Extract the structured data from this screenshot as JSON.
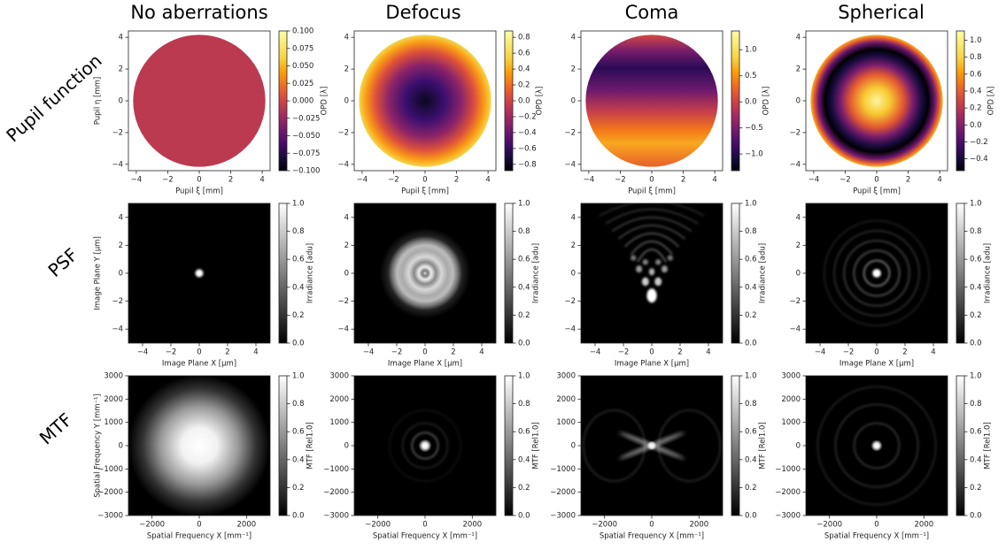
{
  "figure": {
    "column_titles": [
      "No aberrations",
      "Defocus",
      "Coma",
      "Spherical"
    ],
    "row_labels": [
      "Pupil function",
      "PSF",
      "MTF"
    ]
  },
  "chart_data": [
    {
      "type": "heatmap",
      "xlabel": "Pupil ξ [mm]",
      "ylabel": "Pupil η [mm]",
      "xlim": [
        -4.5,
        4.5
      ],
      "ylim": [
        -4.4,
        4.4
      ],
      "xticks": [
        {
          "value": -4,
          "label": "−4"
        },
        {
          "value": -2,
          "label": "−2"
        },
        0,
        2,
        4
      ],
      "yticks": [
        {
          "value": -4,
          "label": "−4"
        },
        {
          "value": -2,
          "label": "−2"
        },
        0,
        2,
        4
      ],
      "colormap": "inferno",
      "colorbar": {
        "label": "OPD [λ]",
        "lim": [
          -0.1,
          0.1
        ],
        "ticks": [
          {
            "value": -0.1,
            "label": "−0.100"
          },
          {
            "value": -0.075,
            "label": "−0.075"
          },
          {
            "value": -0.05,
            "label": "−0.050"
          },
          {
            "value": -0.025,
            "label": "−0.025"
          },
          {
            "value": 0,
            "label": "0.000"
          },
          0.025,
          {
            "value": 0.05,
            "label": "0.050"
          },
          0.075,
          {
            "value": 0.1,
            "label": "0.100"
          }
        ]
      }
    },
    {
      "type": "heatmap",
      "xlabel": "Pupil ξ [mm]",
      "xlim": [
        -4.5,
        4.5
      ],
      "ylim": [
        -4.4,
        4.4
      ],
      "xticks": [
        {
          "value": -4,
          "label": "−4"
        },
        {
          "value": -2,
          "label": "−2"
        },
        0,
        2,
        4
      ],
      "yticks": [
        {
          "value": -4,
          "label": "−4"
        },
        {
          "value": -2,
          "label": "−2"
        },
        0,
        2,
        4
      ],
      "colormap": "inferno",
      "colorbar": {
        "label": "OPD [λ]",
        "lim": [
          -0.88,
          0.88
        ],
        "ticks": [
          {
            "value": -0.8,
            "label": "−0.8"
          },
          {
            "value": -0.6,
            "label": "−0.6"
          },
          {
            "value": -0.4,
            "label": "−0.4"
          },
          {
            "value": -0.2,
            "label": "−0.2"
          },
          {
            "value": 0,
            "label": "0.0"
          },
          0.2,
          0.4,
          0.6,
          0.8
        ]
      }
    },
    {
      "type": "heatmap",
      "xlabel": "Pupil ξ [mm]",
      "xlim": [
        -4.5,
        4.5
      ],
      "ylim": [
        -4.4,
        4.4
      ],
      "xticks": [
        {
          "value": -4,
          "label": "−4"
        },
        {
          "value": -2,
          "label": "−2"
        },
        0,
        2,
        4
      ],
      "yticks": [
        {
          "value": -4,
          "label": "−4"
        },
        {
          "value": -2,
          "label": "−2"
        },
        0,
        2,
        4
      ],
      "colormap": "inferno",
      "colorbar": {
        "label": "OPD [λ]",
        "lim": [
          -1.32,
          1.36
        ],
        "ticks": [
          {
            "value": -1,
            "label": "−1.0"
          },
          {
            "value": -0.5,
            "label": "−0.5"
          },
          {
            "value": 0,
            "label": "0.0"
          },
          0.5,
          {
            "value": 1,
            "label": "1.0"
          }
        ]
      }
    },
    {
      "type": "heatmap",
      "xlabel": "Pupil ξ [mm]",
      "xlim": [
        -4.5,
        4.5
      ],
      "ylim": [
        -4.4,
        4.4
      ],
      "xticks": [
        {
          "value": -4,
          "label": "−4"
        },
        {
          "value": -2,
          "label": "−2"
        },
        0,
        2,
        4
      ],
      "yticks": [
        {
          "value": -4,
          "label": "−4"
        },
        {
          "value": -2,
          "label": "−2"
        },
        0,
        2,
        4
      ],
      "colormap": "inferno",
      "colorbar": {
        "label": "OPD [λ]",
        "lim": [
          -0.54,
          1.11
        ],
        "ticks": [
          {
            "value": -0.4,
            "label": "−0.4"
          },
          {
            "value": -0.2,
            "label": "−0.2"
          },
          {
            "value": 0,
            "label": "0.0"
          },
          0.2,
          0.4,
          0.6,
          0.8,
          {
            "value": 1,
            "label": "1.0"
          }
        ]
      }
    },
    {
      "type": "heatmap",
      "xlabel": "Image Plane X [µm]",
      "ylabel": "Image Plane Y [µm]",
      "xlim": [
        -5,
        5
      ],
      "ylim": [
        -5,
        5
      ],
      "xticks": [
        {
          "value": -4,
          "label": "−4"
        },
        {
          "value": -2,
          "label": "−2"
        },
        0,
        2,
        4
      ],
      "yticks": [
        {
          "value": -4,
          "label": "−4"
        },
        {
          "value": -2,
          "label": "−2"
        },
        0,
        2,
        4
      ],
      "colormap": "gray",
      "colorbar": {
        "label": "Irradiance [adu]",
        "lim": [
          0,
          1
        ],
        "ticks": [
          {
            "value": 0,
            "label": "0.0"
          },
          0.2,
          0.4,
          0.6,
          0.8,
          {
            "value": 1,
            "label": "1.0"
          }
        ]
      }
    },
    {
      "type": "heatmap",
      "xlabel": "Image Plane X [µm]",
      "xlim": [
        -5,
        5
      ],
      "ylim": [
        -5,
        5
      ],
      "xticks": [
        {
          "value": -4,
          "label": "−4"
        },
        {
          "value": -2,
          "label": "−2"
        },
        0,
        2,
        4
      ],
      "yticks": [
        {
          "value": -4,
          "label": "−4"
        },
        {
          "value": -2,
          "label": "−2"
        },
        0,
        2,
        4
      ],
      "colormap": "gray",
      "colorbar": {
        "label": "Irradiance [adu]",
        "lim": [
          0,
          1
        ],
        "ticks": [
          {
            "value": 0,
            "label": "0.0"
          },
          0.2,
          0.4,
          0.6,
          0.8,
          {
            "value": 1,
            "label": "1.0"
          }
        ]
      }
    },
    {
      "type": "heatmap",
      "xlabel": "Image Plane X [µm]",
      "xlim": [
        -5,
        5
      ],
      "ylim": [
        -5,
        5
      ],
      "xticks": [
        {
          "value": -4,
          "label": "−4"
        },
        {
          "value": -2,
          "label": "−2"
        },
        0,
        2,
        4
      ],
      "yticks": [
        {
          "value": -4,
          "label": "−4"
        },
        {
          "value": -2,
          "label": "−2"
        },
        0,
        2,
        4
      ],
      "colormap": "gray",
      "colorbar": {
        "label": "Irradiance [adu]",
        "lim": [
          0,
          1
        ],
        "ticks": [
          {
            "value": 0,
            "label": "0.0"
          },
          0.2,
          0.4,
          0.6,
          0.8,
          {
            "value": 1,
            "label": "1.0"
          }
        ]
      }
    },
    {
      "type": "heatmap",
      "xlabel": "Image Plane X [µm]",
      "xlim": [
        -5,
        5
      ],
      "ylim": [
        -5,
        5
      ],
      "xticks": [
        {
          "value": -4,
          "label": "−4"
        },
        {
          "value": -2,
          "label": "−2"
        },
        0,
        2,
        4
      ],
      "yticks": [
        {
          "value": -4,
          "label": "−4"
        },
        {
          "value": -2,
          "label": "−2"
        },
        0,
        2,
        4
      ],
      "colormap": "gray",
      "colorbar": {
        "label": "Irradiance [adu]",
        "lim": [
          0,
          1
        ],
        "ticks": [
          {
            "value": 0,
            "label": "0.0"
          },
          0.2,
          0.4,
          0.6,
          0.8,
          {
            "value": 1,
            "label": "1.0"
          }
        ]
      }
    },
    {
      "type": "heatmap",
      "xlabel": "Spatial Frequency X [mm⁻¹]",
      "ylabel": "Spatial Frequency Y [mm⁻¹]",
      "xlim": [
        -3000,
        3000
      ],
      "ylim": [
        -3000,
        3000
      ],
      "xticks": [
        {
          "value": -2000,
          "label": "−2000"
        },
        0,
        2000
      ],
      "yticks": [
        {
          "value": -3000,
          "label": "−3000"
        },
        {
          "value": -2000,
          "label": "−2000"
        },
        {
          "value": -1000,
          "label": "−1000"
        },
        0,
        1000,
        2000,
        3000
      ],
      "colormap": "gray",
      "colorbar": {
        "label": "MTF [Rel1.0]",
        "lim": [
          0,
          1
        ],
        "ticks": [
          {
            "value": 0,
            "label": "0.0"
          },
          0.2,
          0.4,
          0.6,
          0.8,
          {
            "value": 1,
            "label": "1.0"
          }
        ]
      }
    },
    {
      "type": "heatmap",
      "xlabel": "Spatial Frequency X [mm⁻¹]",
      "xlim": [
        -3000,
        3000
      ],
      "ylim": [
        -3000,
        3000
      ],
      "xticks": [
        {
          "value": -2000,
          "label": "−2000"
        },
        0,
        2000
      ],
      "yticks": [
        {
          "value": -3000,
          "label": "−3000"
        },
        {
          "value": -2000,
          "label": "−2000"
        },
        {
          "value": -1000,
          "label": "−1000"
        },
        0,
        1000,
        2000,
        3000
      ],
      "colormap": "gray",
      "colorbar": {
        "label": "MTF [Rel1.0]",
        "lim": [
          0,
          1
        ],
        "ticks": [
          {
            "value": 0,
            "label": "0.0"
          },
          0.2,
          0.4,
          0.6,
          0.8,
          {
            "value": 1,
            "label": "1.0"
          }
        ]
      }
    },
    {
      "type": "heatmap",
      "xlabel": "Spatial Frequency X [mm⁻¹]",
      "xlim": [
        -3000,
        3000
      ],
      "ylim": [
        -3000,
        3000
      ],
      "xticks": [
        {
          "value": -2000,
          "label": "−2000"
        },
        0,
        2000
      ],
      "yticks": [
        {
          "value": -3000,
          "label": "−3000"
        },
        {
          "value": -2000,
          "label": "−2000"
        },
        {
          "value": -1000,
          "label": "−1000"
        },
        0,
        1000,
        2000,
        3000
      ],
      "colormap": "gray",
      "colorbar": {
        "label": "MTF [Rel1.0]",
        "lim": [
          0,
          1
        ],
        "ticks": [
          {
            "value": 0,
            "label": "0.0"
          },
          0.2,
          0.4,
          0.6,
          0.8,
          {
            "value": 1,
            "label": "1.0"
          }
        ]
      }
    },
    {
      "type": "heatmap",
      "xlabel": "Spatial Frequency X [mm⁻¹]",
      "xlim": [
        -3000,
        3000
      ],
      "ylim": [
        -3000,
        3000
      ],
      "xticks": [
        {
          "value": -2000,
          "label": "−2000"
        },
        0,
        2000
      ],
      "yticks": [
        {
          "value": -3000,
          "label": "−3000"
        },
        {
          "value": -2000,
          "label": "−2000"
        },
        {
          "value": -1000,
          "label": "−1000"
        },
        0,
        1000,
        2000,
        3000
      ],
      "colormap": "gray",
      "colorbar": {
        "label": "MTF [Rel1.0]",
        "lim": [
          0,
          1
        ],
        "ticks": [
          {
            "value": 0,
            "label": "0.0"
          },
          0.2,
          0.4,
          0.6,
          0.8,
          {
            "value": 1,
            "label": "1.0"
          }
        ]
      }
    }
  ]
}
